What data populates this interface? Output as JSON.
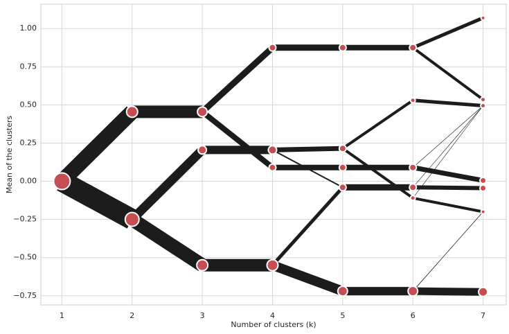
{
  "chart_data": {
    "type": "clustergram",
    "x_label": "Number of clusters (k)",
    "y_label": "Mean of the clusters",
    "xlim": [
      0.7,
      7.33
    ],
    "ylim": [
      -0.81,
      1.16
    ],
    "xticks": [
      1,
      2,
      3,
      4,
      5,
      6,
      7
    ],
    "yticks": [
      {
        "value": -0.75,
        "label": "−0.75"
      },
      {
        "value": -0.5,
        "label": "−0.50"
      },
      {
        "value": -0.25,
        "label": "−0.25"
      },
      {
        "value": 0,
        "label": "0.00"
      },
      {
        "value": 0.25,
        "label": "0.25"
      },
      {
        "value": 0.5,
        "label": "0.50"
      },
      {
        "value": 0.75,
        "label": "0.75"
      },
      {
        "value": 1,
        "label": "1.00"
      }
    ],
    "grid": true,
    "line_color": "#1c1c1c",
    "marker_color": "#c44e52",
    "edges": [
      {
        "x": [
          1,
          2
        ],
        "y": [
          0,
          0.455
        ],
        "width": 22
      },
      {
        "x": [
          1,
          2
        ],
        "y": [
          0,
          -0.25
        ],
        "width": 30
      },
      {
        "x": [
          2,
          3
        ],
        "y": [
          0.455,
          0.455
        ],
        "width": 18
      },
      {
        "x": [
          2,
          3
        ],
        "y": [
          -0.25,
          0.205
        ],
        "width": 13
      },
      {
        "x": [
          2,
          3
        ],
        "y": [
          -0.25,
          -0.55
        ],
        "width": 20
      },
      {
        "x": [
          3,
          4
        ],
        "y": [
          0.455,
          0.875
        ],
        "width": 9
      },
      {
        "x": [
          3,
          4
        ],
        "y": [
          0.455,
          0.09
        ],
        "width": 8
      },
      {
        "x": [
          3,
          4
        ],
        "y": [
          0.205,
          0.205
        ],
        "width": 12
      },
      {
        "x": [
          3,
          4
        ],
        "y": [
          -0.55,
          -0.55
        ],
        "width": 18
      },
      {
        "x": [
          4,
          5
        ],
        "y": [
          0.875,
          0.875
        ],
        "width": 9
      },
      {
        "x": [
          4,
          5
        ],
        "y": [
          0.205,
          0.215
        ],
        "width": 7
      },
      {
        "x": [
          4,
          5
        ],
        "y": [
          0.205,
          -0.04
        ],
        "width": 2
      },
      {
        "x": [
          4,
          5
        ],
        "y": [
          0.09,
          0.09
        ],
        "width": 8
      },
      {
        "x": [
          4,
          5
        ],
        "y": [
          -0.55,
          -0.04
        ],
        "width": 5
      },
      {
        "x": [
          4,
          5
        ],
        "y": [
          -0.55,
          -0.72
        ],
        "width": 14
      },
      {
        "x": [
          5,
          6
        ],
        "y": [
          0.875,
          0.875
        ],
        "width": 8
      },
      {
        "x": [
          5,
          6
        ],
        "y": [
          0.215,
          0.53
        ],
        "width": 4
      },
      {
        "x": [
          5,
          6
        ],
        "y": [
          0.215,
          -0.11
        ],
        "width": 4
      },
      {
        "x": [
          5,
          6
        ],
        "y": [
          0.09,
          0.09
        ],
        "width": 8
      },
      {
        "x": [
          5,
          6
        ],
        "y": [
          -0.04,
          -0.04
        ],
        "width": 9
      },
      {
        "x": [
          5,
          6
        ],
        "y": [
          -0.72,
          -0.72
        ],
        "width": 12
      },
      {
        "x": [
          6,
          7
        ],
        "y": [
          0.875,
          1.07
        ],
        "width": 5
      },
      {
        "x": [
          6,
          7
        ],
        "y": [
          0.875,
          0.535
        ],
        "width": 4
      },
      {
        "x": [
          6,
          7
        ],
        "y": [
          0.53,
          0.495
        ],
        "width": 5
      },
      {
        "x": [
          6,
          7
        ],
        "y": [
          0.09,
          0.005
        ],
        "width": 7
      },
      {
        "x": [
          6,
          7
        ],
        "y": [
          0.09,
          0.495
        ],
        "width": 0.6
      },
      {
        "x": [
          6,
          7
        ],
        "y": [
          -0.04,
          -0.045
        ],
        "width": 6
      },
      {
        "x": [
          6,
          7
        ],
        "y": [
          -0.04,
          0.495
        ],
        "width": 0.6
      },
      {
        "x": [
          6,
          7
        ],
        "y": [
          -0.11,
          0.495
        ],
        "width": 0.6
      },
      {
        "x": [
          6,
          7
        ],
        "y": [
          -0.11,
          -0.2
        ],
        "width": 4
      },
      {
        "x": [
          6,
          7
        ],
        "y": [
          -0.72,
          -0.725
        ],
        "width": 11
      },
      {
        "x": [
          6,
          7
        ],
        "y": [
          -0.72,
          -0.2
        ],
        "width": 0.8
      }
    ],
    "nodes": [
      {
        "k": 1,
        "mean": 0,
        "size": 12
      },
      {
        "k": 2,
        "mean": 0.455,
        "size": 8
      },
      {
        "k": 2,
        "mean": -0.25,
        "size": 10
      },
      {
        "k": 3,
        "mean": 0.455,
        "size": 7
      },
      {
        "k": 3,
        "mean": 0.205,
        "size": 6
      },
      {
        "k": 3,
        "mean": -0.55,
        "size": 8
      },
      {
        "k": 4,
        "mean": 0.875,
        "size": 5
      },
      {
        "k": 4,
        "mean": 0.205,
        "size": 6
      },
      {
        "k": 4,
        "mean": 0.09,
        "size": 5
      },
      {
        "k": 4,
        "mean": -0.55,
        "size": 8
      },
      {
        "k": 5,
        "mean": 0.875,
        "size": 5
      },
      {
        "k": 5,
        "mean": 0.215,
        "size": 5
      },
      {
        "k": 5,
        "mean": 0.09,
        "size": 5
      },
      {
        "k": 5,
        "mean": -0.04,
        "size": 5
      },
      {
        "k": 5,
        "mean": -0.72,
        "size": 7
      },
      {
        "k": 6,
        "mean": 0.875,
        "size": 5
      },
      {
        "k": 6,
        "mean": 0.53,
        "size": 3.5
      },
      {
        "k": 6,
        "mean": 0.09,
        "size": 5
      },
      {
        "k": 6,
        "mean": -0.04,
        "size": 5
      },
      {
        "k": 6,
        "mean": -0.11,
        "size": 3.5
      },
      {
        "k": 6,
        "mean": -0.72,
        "size": 7
      },
      {
        "k": 7,
        "mean": 1.07,
        "size": 3
      },
      {
        "k": 7,
        "mean": 0.535,
        "size": 3.5
      },
      {
        "k": 7,
        "mean": 0.495,
        "size": 3.5
      },
      {
        "k": 7,
        "mean": 0.005,
        "size": 4.5
      },
      {
        "k": 7,
        "mean": -0.045,
        "size": 4.5
      },
      {
        "k": 7,
        "mean": -0.2,
        "size": 3
      },
      {
        "k": 7,
        "mean": -0.725,
        "size": 6.5
      }
    ]
  }
}
